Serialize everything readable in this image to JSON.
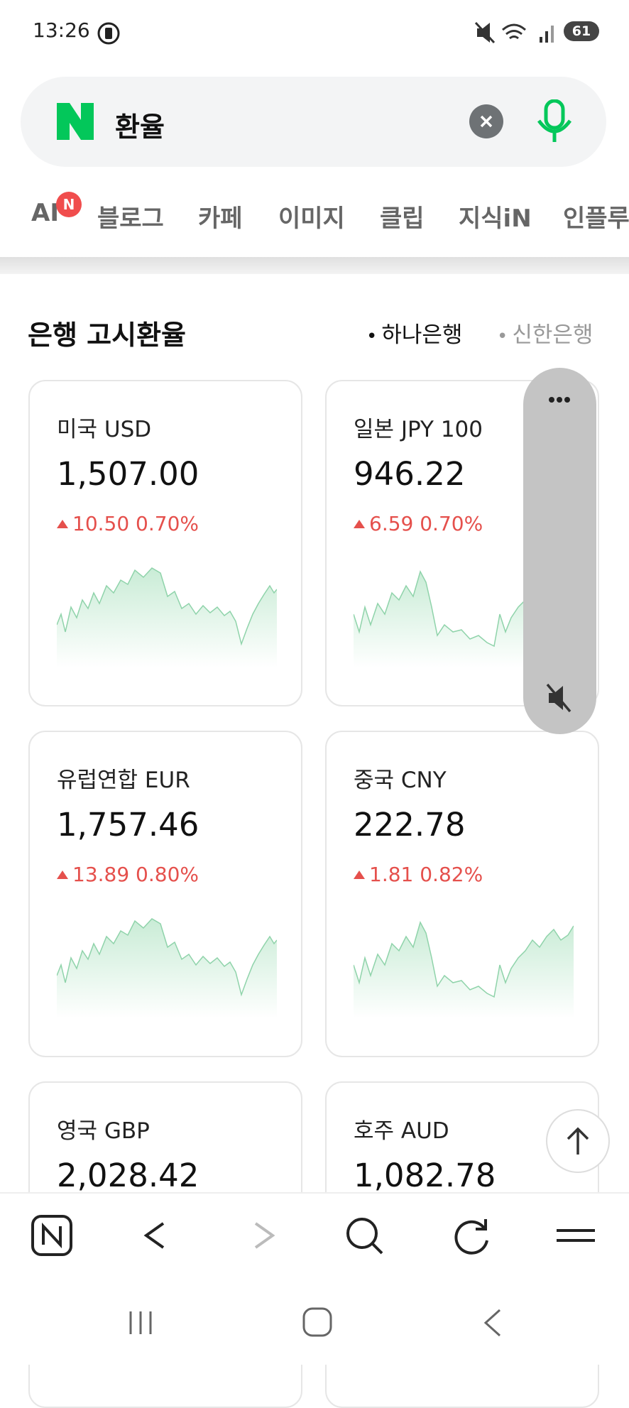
{
  "status": {
    "time": "13:26",
    "battery": "61"
  },
  "search": {
    "query": "환율"
  },
  "tabs": {
    "ai": "AI",
    "ai_badge": "N",
    "items": [
      "블로그",
      "카페",
      "이미지",
      "클립",
      "지식iN",
      "인플루"
    ]
  },
  "section": {
    "title": "은행 고시환율",
    "banks": [
      "하나은행",
      "신한은행"
    ]
  },
  "cards": [
    {
      "name": "미국 USD",
      "value": "1,507.00",
      "change": "10.50 0.70%"
    },
    {
      "name": "일본 JPY 100",
      "value": "946.22",
      "change": "6.59 0.70%"
    },
    {
      "name": "유럽연합 EUR",
      "value": "1,757.46",
      "change": "13.89 0.80%"
    },
    {
      "name": "중국 CNY",
      "value": "222.78",
      "change": "1.81 0.82%"
    },
    {
      "name": "영국 GBP",
      "value": "2,028.42"
    },
    {
      "name": "호주 AUD",
      "value": "1,082.78"
    }
  ]
}
